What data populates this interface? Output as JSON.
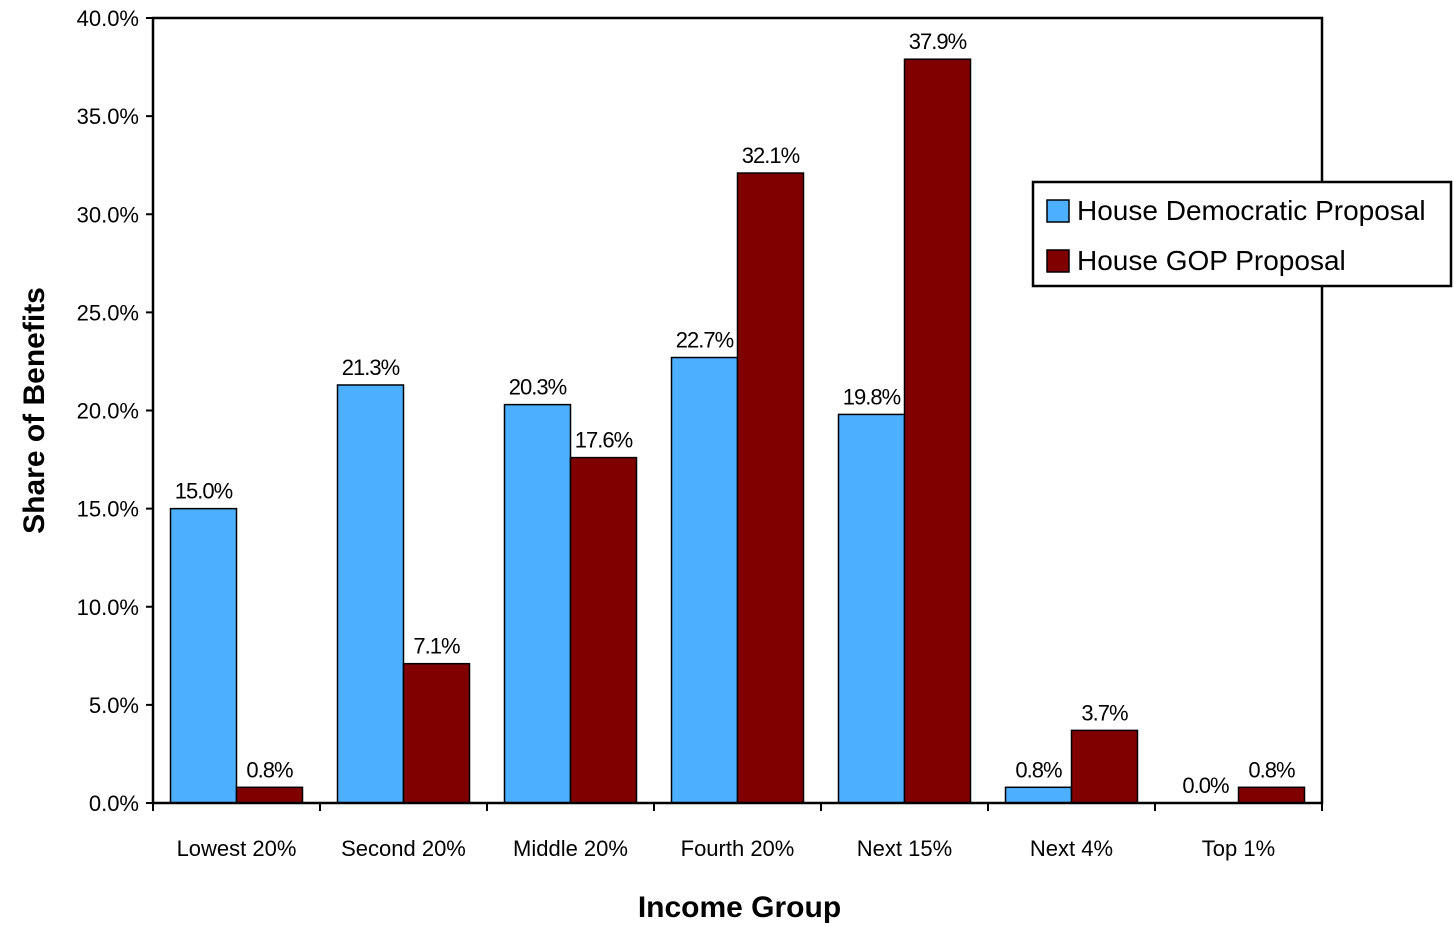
{
  "chart_data": {
    "type": "bar",
    "title": "",
    "xlabel": "Income Group",
    "ylabel": "Share of Benefits",
    "ylim": [
      0,
      40
    ],
    "ytick_step": 5,
    "ytick_labels": [
      "0.0%",
      "5.0%",
      "10.0%",
      "15.0%",
      "20.0%",
      "25.0%",
      "30.0%",
      "35.0%",
      "40.0%"
    ],
    "categories": [
      "Lowest 20%",
      "Second 20%",
      "Middle 20%",
      "Fourth 20%",
      "Next 15%",
      "Next 4%",
      "Top 1%"
    ],
    "series": [
      {
        "name": "House Democratic Proposal",
        "color": "#4DAFFF",
        "values": [
          15.0,
          21.3,
          20.3,
          22.7,
          19.8,
          0.8,
          0.0
        ],
        "labels": [
          "15.0%",
          "21.3%",
          "20.3%",
          "22.7%",
          "19.8%",
          "0.8%",
          "0.0%"
        ]
      },
      {
        "name": "House GOP Proposal",
        "color": "#800000",
        "values": [
          0.8,
          7.1,
          17.6,
          32.1,
          37.9,
          3.7,
          0.8
        ],
        "labels": [
          "0.8%",
          "7.1%",
          "17.6%",
          "32.1%",
          "37.9%",
          "3.7%",
          "0.8%"
        ]
      }
    ],
    "grid": false,
    "legend_position": "right"
  }
}
